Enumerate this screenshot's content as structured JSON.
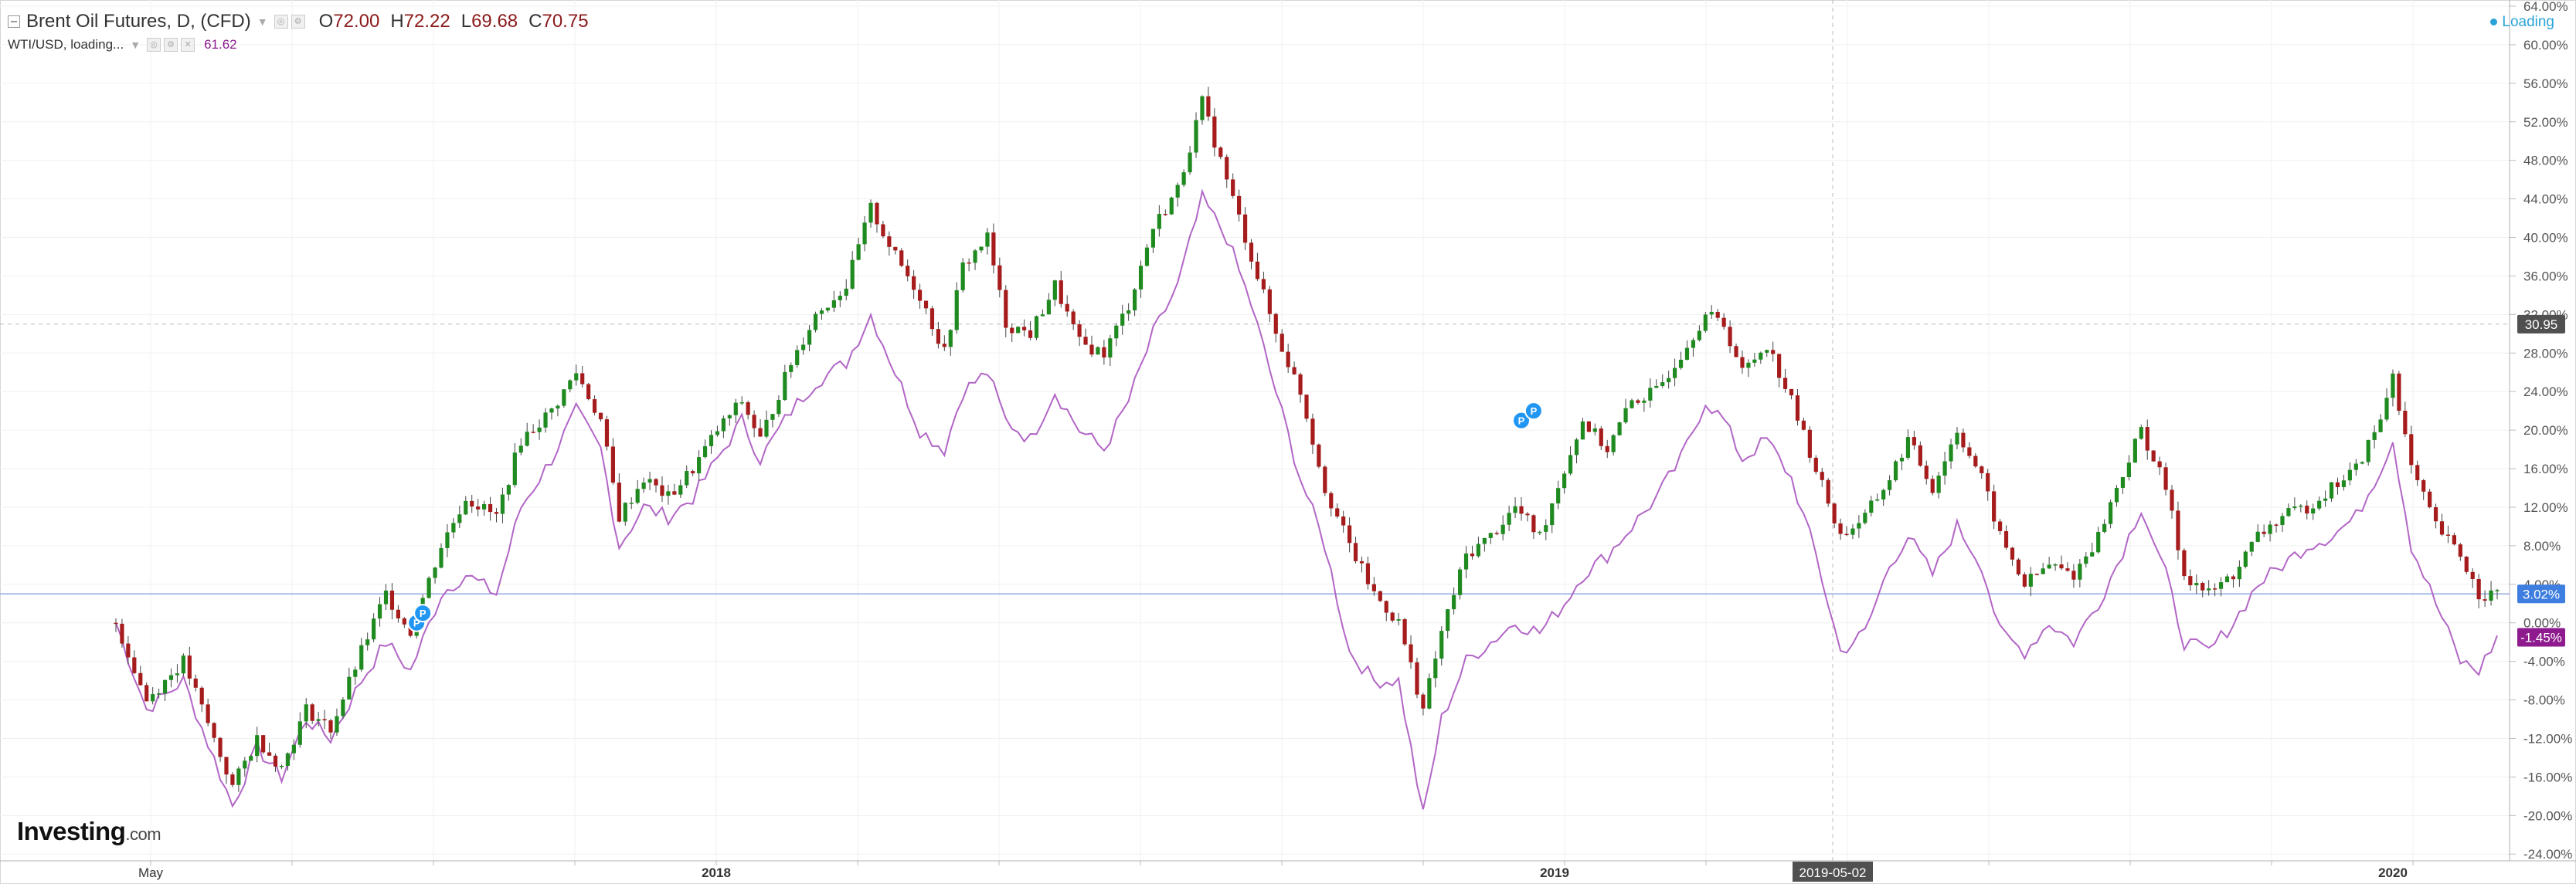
{
  "legend": {
    "main_title": "Brent Oil Futures, D, (CFD)",
    "open_key": "O",
    "open": "72.00",
    "high_key": "H",
    "high": "72.22",
    "low_key": "L",
    "low": "69.68",
    "close_key": "C",
    "close": "70.75",
    "compare_title": "WTI/USD, loading...",
    "compare_value": "61.62"
  },
  "loading_label": "Loading",
  "logo": {
    "brand": "Investing",
    "suffix": ".com"
  },
  "colors": {
    "up": "#1f8a1f",
    "down": "#a61b1b",
    "wti": "#b266c6",
    "price_line": "#8faadc",
    "badge_blue": "#3d7ee0",
    "badge_purple": "#8e1a8e",
    "badge_dark": "#505050",
    "marker": "#2196f3"
  },
  "chart_data": {
    "type": "line",
    "y_axis_unit": "%",
    "yticks": [
      "64.00%",
      "60.00%",
      "56.00%",
      "52.00%",
      "48.00%",
      "44.00%",
      "40.00%",
      "36.00%",
      "32.00%",
      "28.00%",
      "24.00%",
      "20.00%",
      "16.00%",
      "12.00%",
      "8.00%",
      "4.00%",
      "0.00%",
      "-4.00%",
      "-8.00%",
      "-12.00%",
      "-16.00%",
      "-20.00%",
      "-24.00%"
    ],
    "ylim": [
      -25,
      65
    ],
    "xticks": [
      "May",
      "2018",
      "2019",
      "2020"
    ],
    "crosshair_x_label": "2019-05-02",
    "crosshair_y_label": "30.95",
    "last_value_badges": {
      "brent": "3.02%",
      "wti": "-1.45%"
    },
    "series": [
      {
        "name": "Brent Oil Futures",
        "style": "candlestick",
        "points": [
          [
            0,
            0
          ],
          [
            5,
            -8
          ],
          [
            11,
            -4
          ],
          [
            19,
            -17
          ],
          [
            23,
            -12
          ],
          [
            27,
            -15
          ],
          [
            31,
            -9
          ],
          [
            35,
            -11
          ],
          [
            40,
            -3
          ],
          [
            44,
            3
          ],
          [
            48,
            -1
          ],
          [
            53,
            8
          ],
          [
            57,
            13
          ],
          [
            62,
            11
          ],
          [
            66,
            19
          ],
          [
            71,
            22
          ],
          [
            75,
            26
          ],
          [
            79,
            21
          ],
          [
            82,
            11
          ],
          [
            86,
            15
          ],
          [
            90,
            13
          ],
          [
            94,
            16
          ],
          [
            98,
            20
          ],
          [
            102,
            23
          ],
          [
            105,
            19
          ],
          [
            110,
            27
          ],
          [
            114,
            32
          ],
          [
            119,
            35
          ],
          [
            123,
            43
          ],
          [
            127,
            38
          ],
          [
            131,
            34
          ],
          [
            135,
            28
          ],
          [
            138,
            37
          ],
          [
            142,
            40
          ],
          [
            145,
            31
          ],
          [
            149,
            30
          ],
          [
            153,
            35
          ],
          [
            157,
            29
          ],
          [
            161,
            28
          ],
          [
            165,
            33
          ],
          [
            169,
            41
          ],
          [
            173,
            45
          ],
          [
            177,
            54
          ],
          [
            181,
            46
          ],
          [
            185,
            38
          ],
          [
            189,
            30
          ],
          [
            193,
            24
          ],
          [
            197,
            14
          ],
          [
            201,
            8
          ],
          [
            205,
            3
          ],
          [
            209,
            0
          ],
          [
            213,
            -9
          ],
          [
            216,
            -1
          ],
          [
            220,
            7
          ],
          [
            224,
            9
          ],
          [
            228,
            12
          ],
          [
            232,
            9
          ],
          [
            236,
            16
          ],
          [
            239,
            21
          ],
          [
            243,
            18
          ],
          [
            247,
            23
          ],
          [
            251,
            24
          ],
          [
            255,
            28
          ],
          [
            259,
            32
          ],
          [
            262,
            31
          ],
          [
            265,
            26
          ],
          [
            269,
            29
          ],
          [
            273,
            23
          ],
          [
            277,
            16
          ],
          [
            281,
            9
          ],
          [
            285,
            11
          ],
          [
            289,
            15
          ],
          [
            292,
            19
          ],
          [
            296,
            14
          ],
          [
            300,
            20
          ],
          [
            304,
            15
          ],
          [
            307,
            9
          ],
          [
            311,
            4
          ],
          [
            315,
            6
          ],
          [
            319,
            5
          ],
          [
            323,
            9
          ],
          [
            326,
            14
          ],
          [
            330,
            20
          ],
          [
            334,
            14
          ],
          [
            337,
            5
          ],
          [
            341,
            3
          ],
          [
            345,
            5
          ],
          [
            349,
            9
          ],
          [
            353,
            11
          ],
          [
            357,
            12
          ],
          [
            361,
            14
          ],
          [
            365,
            16
          ],
          [
            369,
            21
          ],
          [
            371,
            26
          ],
          [
            374,
            16
          ],
          [
            378,
            10
          ],
          [
            382,
            7
          ],
          [
            385,
            3
          ],
          [
            388,
            3
          ]
        ]
      },
      {
        "name": "WTI/USD",
        "style": "line",
        "points": [
          [
            0,
            0
          ],
          [
            5,
            -9
          ],
          [
            11,
            -6
          ],
          [
            19,
            -19
          ],
          [
            23,
            -13
          ],
          [
            27,
            -16
          ],
          [
            31,
            -10
          ],
          [
            35,
            -12
          ],
          [
            40,
            -6
          ],
          [
            44,
            -2
          ],
          [
            48,
            -5
          ],
          [
            53,
            3
          ],
          [
            57,
            5
          ],
          [
            62,
            3
          ],
          [
            66,
            12
          ],
          [
            71,
            17
          ],
          [
            75,
            22
          ],
          [
            79,
            18
          ],
          [
            82,
            8
          ],
          [
            86,
            12
          ],
          [
            90,
            11
          ],
          [
            94,
            13
          ],
          [
            98,
            17
          ],
          [
            102,
            21
          ],
          [
            105,
            17
          ],
          [
            110,
            22
          ],
          [
            114,
            25
          ],
          [
            119,
            27
          ],
          [
            123,
            32
          ],
          [
            127,
            26
          ],
          [
            131,
            20
          ],
          [
            135,
            18
          ],
          [
            138,
            24
          ],
          [
            142,
            26
          ],
          [
            145,
            21
          ],
          [
            149,
            19
          ],
          [
            153,
            24
          ],
          [
            157,
            20
          ],
          [
            161,
            18
          ],
          [
            165,
            23
          ],
          [
            169,
            30
          ],
          [
            173,
            35
          ],
          [
            177,
            44
          ],
          [
            181,
            40
          ],
          [
            185,
            33
          ],
          [
            189,
            24
          ],
          [
            193,
            15
          ],
          [
            197,
            8
          ],
          [
            201,
            -3
          ],
          [
            205,
            -6
          ],
          [
            209,
            -6
          ],
          [
            213,
            -20
          ],
          [
            216,
            -10
          ],
          [
            220,
            -4
          ],
          [
            224,
            -2
          ],
          [
            228,
            0
          ],
          [
            232,
            -1
          ],
          [
            236,
            2
          ],
          [
            239,
            5
          ],
          [
            243,
            7
          ],
          [
            247,
            10
          ],
          [
            251,
            13
          ],
          [
            255,
            17
          ],
          [
            259,
            23
          ],
          [
            262,
            21
          ],
          [
            265,
            17
          ],
          [
            269,
            19
          ],
          [
            273,
            15
          ],
          [
            277,
            7
          ],
          [
            281,
            -3
          ],
          [
            285,
            -1
          ],
          [
            289,
            6
          ],
          [
            292,
            9
          ],
          [
            296,
            5
          ],
          [
            300,
            10
          ],
          [
            304,
            6
          ],
          [
            307,
            -1
          ],
          [
            311,
            -3
          ],
          [
            315,
            0
          ],
          [
            319,
            -2
          ],
          [
            323,
            2
          ],
          [
            326,
            6
          ],
          [
            330,
            12
          ],
          [
            334,
            5
          ],
          [
            337,
            -2
          ],
          [
            341,
            -3
          ],
          [
            345,
            0
          ],
          [
            349,
            4
          ],
          [
            353,
            6
          ],
          [
            357,
            8
          ],
          [
            361,
            9
          ],
          [
            365,
            11
          ],
          [
            369,
            16
          ],
          [
            371,
            19
          ],
          [
            374,
            8
          ],
          [
            378,
            2
          ],
          [
            382,
            -4
          ],
          [
            385,
            -5
          ],
          [
            388,
            -1.5
          ]
        ]
      }
    ],
    "events": [
      {
        "x": 49,
        "y": 0,
        "label": "P"
      },
      {
        "x": 50,
        "y": 1,
        "label": "P"
      },
      {
        "x": 229,
        "y": 21,
        "label": "P"
      },
      {
        "x": 231,
        "y": 22,
        "label": "P"
      }
    ]
  }
}
